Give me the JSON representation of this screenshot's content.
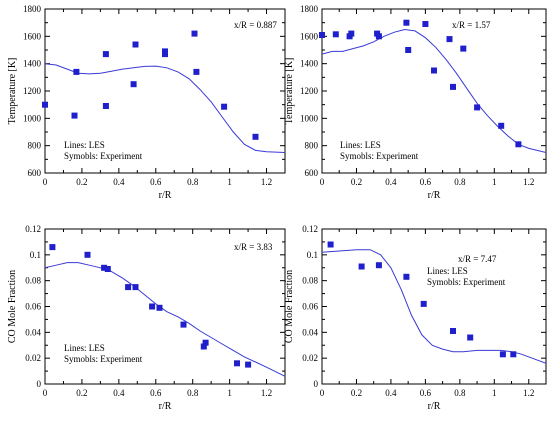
{
  "chart_data": [
    {
      "type": "line",
      "annotation": "x/R = 0.887",
      "xlabel": "r/R",
      "ylabel": "Temperature [K]",
      "xlim": [
        0,
        1.3
      ],
      "ylim": [
        600,
        1800
      ],
      "xticks": [
        "0",
        "0.2",
        "0.4",
        "0.6",
        "0.8",
        "1",
        "1.2"
      ],
      "yticks": [
        "600",
        "800",
        "1000",
        "1200",
        "1400",
        "1600",
        "1800"
      ],
      "legend": [
        "Lines: LES",
        "Symobls: Experiment"
      ],
      "series": [
        {
          "marker": "line",
          "x": [
            0,
            0.06,
            0.12,
            0.18,
            0.24,
            0.3,
            0.36,
            0.42,
            0.48,
            0.54,
            0.6,
            0.66,
            0.72,
            0.78,
            0.84,
            0.9,
            0.96,
            1.02,
            1.08,
            1.14,
            1.2,
            1.3
          ],
          "y": [
            1400,
            1390,
            1360,
            1330,
            1325,
            1330,
            1345,
            1360,
            1370,
            1380,
            1382,
            1370,
            1340,
            1290,
            1210,
            1120,
            1010,
            900,
            810,
            765,
            755,
            750
          ]
        },
        {
          "marker": "square",
          "x": [
            0,
            0.16,
            0.17,
            0.33,
            0.33,
            0.48,
            0.49,
            0.65,
            0.65,
            0.81,
            0.82,
            0.97,
            1.14
          ],
          "y": [
            1100,
            1020,
            1340,
            1470,
            1090,
            1250,
            1540,
            1490,
            1470,
            1620,
            1340,
            1085,
            865
          ]
        }
      ]
    },
    {
      "type": "line",
      "annotation": "x/R = 1.57",
      "xlabel": "r/R",
      "ylabel": "Temperature [K]",
      "xlim": [
        0,
        1.3
      ],
      "ylim": [
        600,
        1800
      ],
      "xticks": [
        "0",
        "0.2",
        "0.4",
        "0.6",
        "0.8",
        "1",
        "1.2"
      ],
      "yticks": [
        "600",
        "800",
        "1000",
        "1200",
        "1400",
        "1600",
        "1800"
      ],
      "legend": [
        "Lines: LES",
        "Symobls: Experiment"
      ],
      "series": [
        {
          "marker": "line",
          "x": [
            0,
            0.06,
            0.12,
            0.18,
            0.24,
            0.3,
            0.36,
            0.42,
            0.48,
            0.54,
            0.6,
            0.66,
            0.72,
            0.78,
            0.84,
            0.9,
            0.96,
            1.02,
            1.08,
            1.14,
            1.2,
            1.3
          ],
          "y": [
            1470,
            1490,
            1490,
            1510,
            1530,
            1560,
            1600,
            1630,
            1650,
            1640,
            1590,
            1520,
            1430,
            1330,
            1220,
            1110,
            1020,
            940,
            870,
            810,
            780,
            750
          ]
        },
        {
          "marker": "square",
          "x": [
            0,
            0.08,
            0.16,
            0.17,
            0.32,
            0.33,
            0.49,
            0.5,
            0.6,
            0.65,
            0.74,
            0.76,
            0.82,
            0.9,
            1.04,
            1.14
          ],
          "y": [
            1610,
            1615,
            1600,
            1620,
            1620,
            1600,
            1700,
            1500,
            1690,
            1350,
            1580,
            1230,
            1510,
            1080,
            945,
            810
          ]
        }
      ]
    },
    {
      "type": "line",
      "annotation": "x/R = 3.83",
      "xlabel": "r/R",
      "ylabel": "CO Mole Fraction",
      "xlim": [
        0,
        1.3
      ],
      "ylim": [
        0,
        0.12
      ],
      "xticks": [
        "0",
        "0.2",
        "0.4",
        "0.6",
        "0.8",
        "1",
        "1.2"
      ],
      "yticks": [
        "0",
        "0.02",
        "0.04",
        "0.06",
        "0.08",
        "0.1",
        "0.12"
      ],
      "legend": [
        "Lines: LES",
        "Symobls: Experiment"
      ],
      "series": [
        {
          "marker": "line",
          "x": [
            0,
            0.06,
            0.12,
            0.18,
            0.24,
            0.3,
            0.36,
            0.42,
            0.48,
            0.54,
            0.6,
            0.66,
            0.72,
            0.78,
            0.84,
            0.9,
            0.96,
            1.02,
            1.08,
            1.14,
            1.2,
            1.3
          ],
          "y": [
            0.09,
            0.092,
            0.094,
            0.094,
            0.092,
            0.09,
            0.087,
            0.082,
            0.076,
            0.069,
            0.062,
            0.056,
            0.052,
            0.047,
            0.041,
            0.036,
            0.031,
            0.026,
            0.021,
            0.017,
            0.013,
            0.006
          ]
        },
        {
          "marker": "square",
          "x": [
            0.04,
            0.23,
            0.32,
            0.34,
            0.45,
            0.49,
            0.58,
            0.62,
            0.75,
            0.86,
            0.87,
            1.04,
            1.1
          ],
          "y": [
            0.106,
            0.1,
            0.09,
            0.089,
            0.075,
            0.075,
            0.06,
            0.059,
            0.046,
            0.029,
            0.032,
            0.016,
            0.015
          ]
        }
      ]
    },
    {
      "type": "line",
      "annotation": "x/R = 7.47",
      "xlabel": "r/R",
      "ylabel": "CO Mole Fraction",
      "xlim": [
        0,
        1.3
      ],
      "ylim": [
        0,
        0.12
      ],
      "xticks": [
        "0",
        "0.2",
        "0.4",
        "0.6",
        "0.8",
        "1",
        "1.2"
      ],
      "yticks": [
        "0",
        "0.02",
        "0.04",
        "0.06",
        "0.08",
        "0.1",
        "0.12"
      ],
      "legend": [
        "Lines: LES",
        "Symobls: Experiment"
      ],
      "series": [
        {
          "marker": "line",
          "x": [
            0,
            0.1,
            0.2,
            0.28,
            0.34,
            0.4,
            0.46,
            0.52,
            0.58,
            0.64,
            0.7,
            0.76,
            0.82,
            0.9,
            0.98,
            1.04,
            1.1,
            1.16,
            1.22,
            1.3
          ],
          "y": [
            0.102,
            0.103,
            0.104,
            0.104,
            0.1,
            0.09,
            0.073,
            0.053,
            0.038,
            0.03,
            0.027,
            0.025,
            0.025,
            0.026,
            0.026,
            0.026,
            0.025,
            0.023,
            0.02,
            0.016
          ]
        },
        {
          "marker": "square",
          "x": [
            0.05,
            0.23,
            0.33,
            0.49,
            0.59,
            0.76,
            0.86,
            1.05,
            1.11
          ],
          "y": [
            0.108,
            0.091,
            0.092,
            0.083,
            0.062,
            0.041,
            0.036,
            0.023,
            0.023
          ]
        }
      ]
    }
  ]
}
